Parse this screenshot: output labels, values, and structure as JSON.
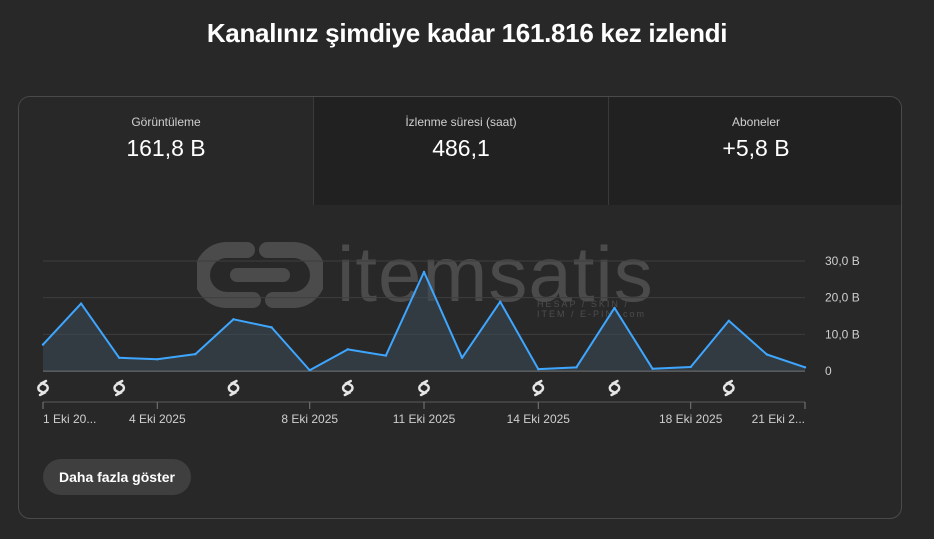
{
  "header": {
    "title": "Kanalınız şimdiye kadar 161.816 kez izlendi"
  },
  "metrics": [
    {
      "label": "Görüntüleme",
      "value": "161,8 B"
    },
    {
      "label": "İzlenme süresi (saat)",
      "value": "486,1"
    },
    {
      "label": "Aboneler",
      "value": "+5,8 B"
    }
  ],
  "watermark": {
    "brand": "itemsatis",
    "sub": "HESAP / SKIN / ITEM / E-PIN",
    "suffix": "com"
  },
  "chart_data": {
    "type": "area",
    "x": [
      "1 Eki 2025",
      "2 Eki 2025",
      "3 Eki 2025",
      "4 Eki 2025",
      "5 Eki 2025",
      "6 Eki 2025",
      "7 Eki 2025",
      "8 Eki 2025",
      "9 Eki 2025",
      "10 Eki 2025",
      "11 Eki 2025",
      "12 Eki 2025",
      "13 Eki 2025",
      "14 Eki 2025",
      "15 Eki 2025",
      "16 Eki 2025",
      "17 Eki 2025",
      "18 Eki 2025",
      "19 Eki 2025",
      "20 Eki 2025",
      "21 Eki 2025"
    ],
    "series": [
      {
        "values": [
          7.2,
          18.4,
          3.6,
          3.2,
          4.6,
          14.1,
          11.9,
          0.2,
          5.9,
          4.2,
          27.0,
          3.6,
          18.9,
          0.5,
          1.0,
          17.2,
          0.6,
          1.1,
          13.7,
          4.5,
          1.0
        ]
      }
    ],
    "x_tick_labels": [
      "1 Eki 20...",
      "4 Eki 2025",
      "8 Eki 2025",
      "11 Eki 2025",
      "14 Eki 2025",
      "18 Eki 2025",
      "21 Eki 2..."
    ],
    "x_tick_indices": [
      0,
      3,
      7,
      10,
      13,
      17,
      20
    ],
    "y_ticks": [
      0,
      10,
      20,
      30
    ],
    "y_tick_labels": [
      "0",
      "10,0 B",
      "20,0 B",
      "30,0 B"
    ],
    "ylim": [
      0,
      30
    ],
    "shorts_marker_indices": [
      0,
      2,
      5,
      8,
      10,
      13,
      15,
      18
    ],
    "grid": true,
    "line_color": "#3ea6ff",
    "fill_color": "#3a4a56"
  },
  "actions": {
    "more_label": "Daha fazla göster"
  }
}
